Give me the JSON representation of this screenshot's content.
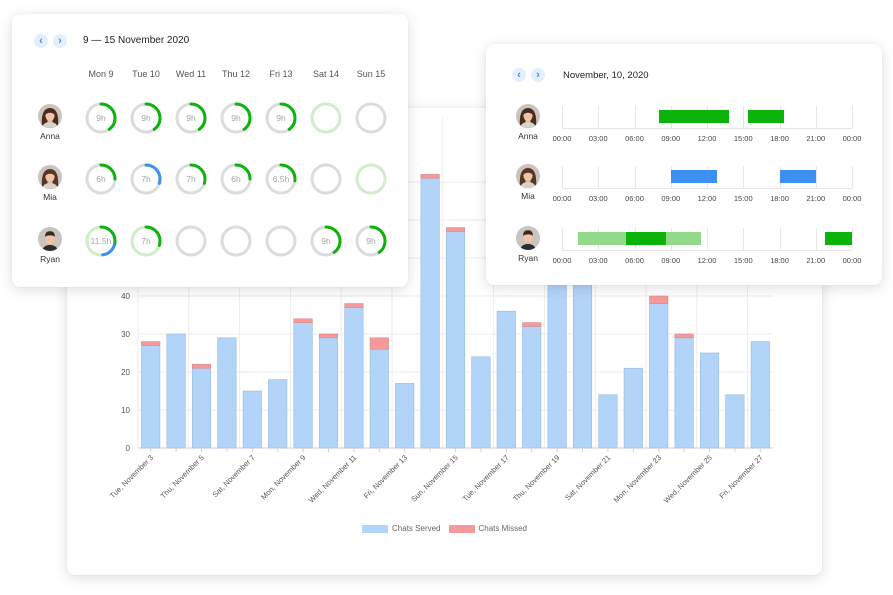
{
  "colors": {
    "served": "#b3d4f9",
    "missed": "#f59a9a",
    "green": "#0bb30b",
    "green_light": "#92d98c",
    "blue": "#3d8ff3",
    "ring_track": "#dcdcdc",
    "ring_track_green": "#cdeec9"
  },
  "chart_data": {
    "type": "bar",
    "stacked": true,
    "categories": [
      "Tue, November 3",
      "Wed, November 4",
      "Thu, November 5",
      "Fri, November 6",
      "Sat, November 7",
      "Sun, November 8",
      "Mon, November 9",
      "Tue, November 10",
      "Wed, November 11",
      "Thu, November 12",
      "Fri, November 13",
      "Sat, November 14",
      "Sun, November 15",
      "Mon, November 16",
      "Tue, November 17",
      "Wed, November 18",
      "Thu, November 19",
      "Fri, November 20",
      "Sat, November 21",
      "Sun, November 22",
      "Mon, November 23",
      "Tue, November 24",
      "Wed, November 25",
      "Thu, November 26",
      "Fri, November 27"
    ],
    "tick_labels": [
      "Tue, November 3",
      "",
      "Thu, November 5",
      "",
      "Sat, November 7",
      "",
      "Mon, November 9",
      "",
      "Wed, November 11",
      "",
      "Fri, November 13",
      "",
      "Sun, November 15",
      "",
      "Tue, November 17",
      "",
      "Thu, November 19",
      "",
      "Sat, November 21",
      "",
      "Mon, November 23",
      "",
      "Wed, November 25",
      "",
      "Fri, November 27"
    ],
    "series": [
      {
        "name": "Chats Served",
        "values": [
          27,
          30,
          21,
          29,
          15,
          18,
          33,
          29,
          37,
          26,
          17,
          71,
          57,
          24,
          36,
          32,
          48,
          50,
          14,
          21,
          38,
          29,
          25,
          14,
          28
        ]
      },
      {
        "name": "Chats Missed",
        "values": [
          1,
          0,
          1,
          0,
          0,
          0,
          1,
          1,
          1,
          3,
          0,
          1,
          1,
          0,
          0,
          1,
          0,
          0,
          0,
          0,
          2,
          1,
          0,
          0,
          0
        ]
      }
    ],
    "y_ticks": [
      0,
      10,
      20,
      30,
      40
    ],
    "ylim": [
      0,
      80
    ],
    "legend": "bottom",
    "grid": true
  },
  "week_card": {
    "range_title": "9 — 15 November 2020",
    "days": [
      "Mon 9",
      "Tue 10",
      "Wed 11",
      "Thu 12",
      "Fri 13",
      "Sat 14",
      "Sun 15"
    ],
    "rows": [
      {
        "name": "Anna",
        "cells": [
          {
            "label": "9h",
            "green": 0.4,
            "blue": 0,
            "track": "gray"
          },
          {
            "label": "9h",
            "green": 0.4,
            "blue": 0,
            "track": "gray"
          },
          {
            "label": "9h",
            "green": 0.4,
            "blue": 0,
            "track": "gray"
          },
          {
            "label": "9h",
            "green": 0.4,
            "blue": 0,
            "track": "gray"
          },
          {
            "label": "9h",
            "green": 0.4,
            "blue": 0,
            "track": "gray"
          },
          {
            "label": "",
            "green": 0,
            "blue": 0,
            "track": "green"
          },
          {
            "label": "",
            "green": 0,
            "blue": 0,
            "track": "gray"
          }
        ]
      },
      {
        "name": "Mia",
        "cells": [
          {
            "label": "6h",
            "green": 0.25,
            "blue": 0,
            "track": "gray"
          },
          {
            "label": "7h",
            "green": 0,
            "blue": 0.3,
            "track": "gray"
          },
          {
            "label": "7h",
            "green": 0.3,
            "blue": 0,
            "track": "gray"
          },
          {
            "label": "6h",
            "green": 0.25,
            "blue": 0,
            "track": "gray"
          },
          {
            "label": "6.5h",
            "green": 0.27,
            "blue": 0,
            "track": "gray"
          },
          {
            "label": "",
            "green": 0,
            "blue": 0,
            "track": "gray"
          },
          {
            "label": "",
            "green": 0,
            "blue": 0,
            "track": "green"
          }
        ]
      },
      {
        "name": "Ryan",
        "cells": [
          {
            "label": "11.5h",
            "green": 0.3,
            "blue": 0.18,
            "track": "green"
          },
          {
            "label": "7h",
            "green": 0.3,
            "blue": 0,
            "track": "green"
          },
          {
            "label": "",
            "green": 0,
            "blue": 0,
            "track": "gray"
          },
          {
            "label": "",
            "green": 0,
            "blue": 0,
            "track": "gray"
          },
          {
            "label": "",
            "green": 0,
            "blue": 0,
            "track": "gray"
          },
          {
            "label": "9h",
            "green": 0.4,
            "blue": 0,
            "track": "gray"
          },
          {
            "label": "9h",
            "green": 0.4,
            "blue": 0,
            "track": "gray"
          }
        ]
      }
    ]
  },
  "day_card": {
    "date_title": "November, 10, 2020",
    "hour_labels": [
      "00:00",
      "03:00",
      "06:00",
      "09:00",
      "12:00",
      "15:00",
      "18:00",
      "21:00",
      "00:00"
    ],
    "rows": [
      {
        "name": "Anna",
        "segments": [
          {
            "start": 8.0,
            "end": 13.8,
            "color": "green"
          },
          {
            "start": 15.4,
            "end": 18.4,
            "color": "green"
          }
        ]
      },
      {
        "name": "Mia",
        "segments": [
          {
            "start": 9.0,
            "end": 12.8,
            "color": "blue"
          },
          {
            "start": 18.0,
            "end": 21.0,
            "color": "blue"
          }
        ]
      },
      {
        "name": "Ryan",
        "segments": [
          {
            "start": 1.3,
            "end": 5.3,
            "color": "green_light"
          },
          {
            "start": 5.3,
            "end": 8.6,
            "color": "green"
          },
          {
            "start": 8.6,
            "end": 11.5,
            "color": "green_light"
          },
          {
            "start": 21.8,
            "end": 24.0,
            "color": "green"
          }
        ]
      }
    ]
  }
}
